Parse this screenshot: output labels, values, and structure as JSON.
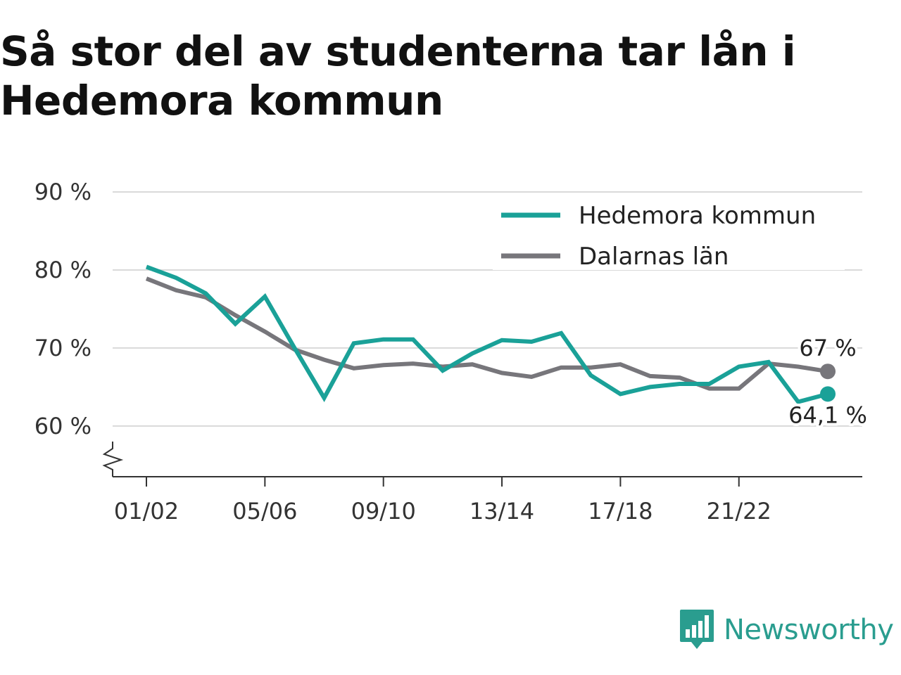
{
  "header": {
    "title": "Så stor del av studenterna tar lån i Hedemora kommun"
  },
  "brand": {
    "name": "Newsworthy",
    "logo_icon": "bar-chart-speech-bubble-icon",
    "color": "#2a9d8f"
  },
  "chart_data": {
    "type": "line",
    "x": [
      "01/02",
      "02/03",
      "03/04",
      "04/05",
      "05/06",
      "06/07",
      "07/08",
      "08/09",
      "09/10",
      "10/11",
      "11/12",
      "12/13",
      "13/14",
      "14/15",
      "15/16",
      "16/17",
      "17/18",
      "18/19",
      "19/20",
      "20/21",
      "21/22",
      "22/23",
      "23/24",
      "24/25"
    ],
    "x_ticks": [
      "01/02",
      "05/06",
      "09/10",
      "13/14",
      "17/18",
      "21/22"
    ],
    "y_ticks": [
      {
        "value": 90,
        "label": "90 %"
      },
      {
        "value": 80,
        "label": "80 %"
      },
      {
        "value": 70,
        "label": "70 %"
      },
      {
        "value": 60,
        "label": "60 %"
      }
    ],
    "ylim": [
      53.5,
      90
    ],
    "y_axis_break": true,
    "grid": true,
    "legend_position": "top-right",
    "series": [
      {
        "name": "Hedemora kommun",
        "color": "#1aa198",
        "values": [
          80.4,
          79.0,
          77.0,
          73.1,
          76.6,
          70.0,
          63.6,
          70.6,
          71.1,
          71.1,
          67.1,
          69.3,
          71.0,
          70.8,
          71.9,
          66.5,
          64.1,
          65.0,
          65.4,
          65.4,
          67.6,
          68.2,
          63.1,
          64.1
        ],
        "end_label": "64,1 %"
      },
      {
        "name": "Dalarnas län",
        "color": "#77767b",
        "values": [
          78.9,
          77.4,
          76.5,
          74.2,
          72.1,
          69.8,
          68.5,
          67.4,
          67.8,
          68.0,
          67.6,
          67.9,
          66.8,
          66.3,
          67.5,
          67.5,
          67.9,
          66.4,
          66.2,
          64.8,
          64.8,
          68.0,
          67.6,
          67.0
        ],
        "end_label": "67 %"
      }
    ]
  }
}
